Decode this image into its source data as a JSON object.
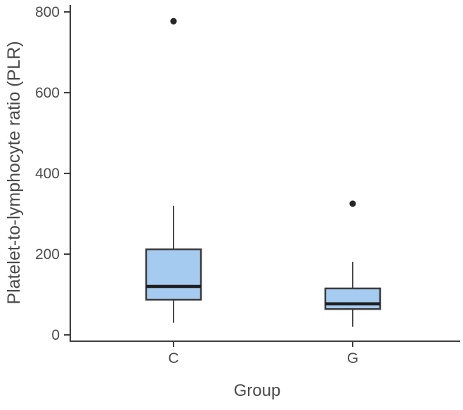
{
  "chart_data": {
    "type": "boxplot",
    "title": "",
    "xlabel": "Group",
    "ylabel": "Platelet-to-lymphocyte ratio (PLR)",
    "categories": [
      "C",
      "G"
    ],
    "groups": [
      {
        "label": "C",
        "whisker_min": 30,
        "q1": 87,
        "median": 120,
        "q3": 212,
        "whisker_max": 320,
        "outliers": [
          777
        ]
      },
      {
        "label": "G",
        "whisker_min": 20,
        "q1": 64,
        "median": 77,
        "q3": 115,
        "whisker_max": 181,
        "outliers": [
          325
        ]
      }
    ],
    "yticks": [
      0,
      200,
      400,
      600,
      800
    ],
    "ylim": [
      0,
      817
    ],
    "grid": false,
    "legend": false,
    "layout": {
      "legend_position": "none",
      "whisker_caps": false,
      "box_orientation": "vertical"
    },
    "colors": {
      "box_fill": "#a6cbf1",
      "box_border": "#3b3b3b",
      "median": "#1f1f1f",
      "whisker": "#4a4a4a",
      "axis": "#3d3d3d",
      "outlier": "#262626",
      "text": "#4d4d4d",
      "background": "#ffffff"
    }
  }
}
